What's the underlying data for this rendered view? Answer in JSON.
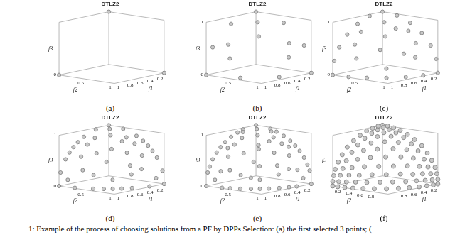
{
  "caption": "1: Example of the process of choosing solutions from a PF by DPPs Selection: (a) the first selected 3 points; (",
  "chart_data": [
    {
      "type": "scatter3d",
      "title": "DTLZ2",
      "panel_label": "(a)",
      "x_label": "f1",
      "y_label": "f2",
      "z_label": "f3",
      "xlim": [
        0,
        1
      ],
      "ylim": [
        0,
        1
      ],
      "zlim": [
        0,
        1
      ],
      "xticks": [
        0.2,
        0.4,
        0.6,
        0.8,
        1
      ],
      "yticks": [
        0.5,
        1
      ],
      "zticks": [
        0,
        1
      ],
      "color": "#c8c8c8",
      "marker": "circle",
      "points": [
        [
          1,
          0,
          0
        ],
        [
          0,
          1,
          0
        ],
        [
          0,
          0,
          1
        ]
      ]
    },
    {
      "type": "scatter3d",
      "title": "DTLZ2",
      "panel_label": "(b)",
      "x_label": "f1",
      "y_label": "f2",
      "z_label": "f3",
      "xlim": [
        0,
        1
      ],
      "ylim": [
        0,
        1
      ],
      "zlim": [
        0,
        1
      ],
      "xticks": [
        0.2,
        0.4,
        0.6,
        0.8,
        1
      ],
      "yticks": [
        0.5,
        1
      ],
      "zticks": [
        0,
        1
      ],
      "color": "#c8c8c8",
      "marker": "circle",
      "points": [
        [
          1,
          0,
          0
        ],
        [
          0,
          1,
          0
        ],
        [
          0,
          0,
          1
        ],
        [
          0.87,
          0.5,
          0
        ],
        [
          0.5,
          0.87,
          0
        ],
        [
          0.5,
          0,
          0.87
        ],
        [
          0.87,
          0,
          0.5
        ],
        [
          0,
          0.5,
          0.87
        ],
        [
          0,
          0.87,
          0.5
        ],
        [
          0.5,
          0.5,
          0.71
        ],
        [
          0.88,
          0.32,
          0.34
        ],
        [
          0.32,
          0.88,
          0.34
        ],
        [
          0.79,
          0.21,
          0.57
        ],
        [
          0.21,
          0.79,
          0.57
        ],
        [
          0.3,
          0.3,
          0.91
        ]
      ]
    },
    {
      "type": "scatter3d",
      "title": "DTLZ2",
      "panel_label": "(c)",
      "x_label": "f1",
      "y_label": "f2",
      "z_label": "f3",
      "xlim": [
        0,
        1
      ],
      "ylim": [
        0,
        1
      ],
      "zlim": [
        0,
        1
      ],
      "xticks": [
        0.2,
        0.4,
        0.6,
        0.8,
        1
      ],
      "yticks": [
        0.5,
        1
      ],
      "zticks": [
        0,
        1
      ],
      "color": "#c8c8c8",
      "marker": "circle",
      "points": [
        [
          1,
          0,
          0
        ],
        [
          0,
          1,
          0
        ],
        [
          0,
          0,
          1
        ],
        [
          0.87,
          0.5,
          0
        ],
        [
          0.5,
          0.87,
          0
        ],
        [
          0.5,
          0,
          0.87
        ],
        [
          0.87,
          0,
          0.5
        ],
        [
          0,
          0.5,
          0.87
        ],
        [
          0,
          0.87,
          0.5
        ],
        [
          0.5,
          0.5,
          0.71
        ],
        [
          0.88,
          0.32,
          0.34
        ],
        [
          0.32,
          0.88,
          0.34
        ],
        [
          0.79,
          0.21,
          0.57
        ],
        [
          0.21,
          0.79,
          0.57
        ],
        [
          0.3,
          0.3,
          0.91
        ],
        [
          0.97,
          0.26,
          0
        ],
        [
          0.71,
          0.71,
          0
        ],
        [
          0.26,
          0.97,
          0
        ],
        [
          0.26,
          0,
          0.97
        ],
        [
          0.71,
          0,
          0.71
        ],
        [
          0.97,
          0,
          0.26
        ],
        [
          0,
          0.26,
          0.97
        ],
        [
          0,
          0.71,
          0.71
        ],
        [
          0,
          0.97,
          0.26
        ],
        [
          0.69,
          0.69,
          0.17
        ],
        [
          0.67,
          0.56,
          0.5
        ],
        [
          0.62,
          0.17,
          0.77
        ],
        [
          0.17,
          0.62,
          0.77
        ],
        [
          0.45,
          0.79,
          0.42
        ],
        [
          0.29,
          0.5,
          0.82
        ]
      ]
    },
    {
      "type": "scatter3d",
      "title": "DTLZ2",
      "panel_label": "(d)",
      "x_label": "f1",
      "y_label": "f2",
      "z_label": "f3",
      "xlim": [
        0,
        1
      ],
      "ylim": [
        0,
        1
      ],
      "zlim": [
        0,
        1
      ],
      "xticks": [
        0.2,
        0.4,
        0.6,
        0.8,
        1
      ],
      "yticks": [
        0.5,
        1
      ],
      "zticks": [
        0,
        1
      ],
      "color": "#c8c8c8",
      "marker": "circle",
      "points": [
        [
          1,
          0,
          0
        ],
        [
          0,
          1,
          0
        ],
        [
          0,
          0,
          1
        ],
        [
          0.87,
          0.5,
          0
        ],
        [
          0.5,
          0.87,
          0
        ],
        [
          0.5,
          0,
          0.87
        ],
        [
          0.87,
          0,
          0.5
        ],
        [
          0,
          0.5,
          0.87
        ],
        [
          0,
          0.87,
          0.5
        ],
        [
          0.5,
          0.5,
          0.71
        ],
        [
          0.88,
          0.32,
          0.34
        ],
        [
          0.32,
          0.88,
          0.34
        ],
        [
          0.79,
          0.21,
          0.57
        ],
        [
          0.21,
          0.79,
          0.57
        ],
        [
          0.3,
          0.3,
          0.91
        ],
        [
          0.97,
          0.26,
          0
        ],
        [
          0.71,
          0.71,
          0
        ],
        [
          0.26,
          0.97,
          0
        ],
        [
          0.26,
          0,
          0.97
        ],
        [
          0.71,
          0,
          0.71
        ],
        [
          0.97,
          0,
          0.26
        ],
        [
          0,
          0.26,
          0.97
        ],
        [
          0,
          0.71,
          0.71
        ],
        [
          0,
          0.97,
          0.26
        ],
        [
          0.69,
          0.69,
          0.17
        ],
        [
          0.67,
          0.56,
          0.5
        ],
        [
          0.62,
          0.17,
          0.77
        ],
        [
          0.17,
          0.62,
          0.77
        ],
        [
          0.45,
          0.79,
          0.42
        ],
        [
          0.29,
          0.5,
          0.82
        ],
        [
          0.79,
          0.62,
          0
        ],
        [
          0.62,
          0.79,
          0
        ],
        [
          0.62,
          0,
          0.79
        ],
        [
          0.79,
          0,
          0.62
        ],
        [
          0,
          0.62,
          0.79
        ],
        [
          0,
          0.79,
          0.62
        ],
        [
          0.84,
          0.48,
          0.26
        ],
        [
          0.48,
          0.84,
          0.26
        ],
        [
          0.67,
          0.38,
          0.64
        ],
        [
          0.38,
          0.67,
          0.64
        ],
        [
          0.47,
          0.17,
          0.87
        ],
        [
          0.17,
          0.47,
          0.87
        ],
        [
          0.98,
          0.14,
          0.14
        ],
        [
          0.14,
          0.98,
          0.14
        ],
        [
          0.15,
          0.15,
          0.98
        ]
      ]
    },
    {
      "type": "scatter3d",
      "title": "DTLZ2",
      "panel_label": "(e)",
      "x_label": "f1",
      "y_label": "f2",
      "z_label": "f3",
      "xlim": [
        0,
        1
      ],
      "ylim": [
        0,
        1
      ],
      "zlim": [
        0,
        1
      ],
      "xticks": [
        0.2,
        0.4,
        0.6,
        0.8,
        1
      ],
      "yticks": [
        0.5,
        1
      ],
      "zticks": [
        0,
        1
      ],
      "color": "#c8c8c8",
      "marker": "circle",
      "points": [
        [
          1,
          0,
          0
        ],
        [
          0,
          1,
          0
        ],
        [
          0,
          0,
          1
        ],
        [
          0.87,
          0.5,
          0
        ],
        [
          0.5,
          0.87,
          0
        ],
        [
          0.5,
          0,
          0.87
        ],
        [
          0.87,
          0,
          0.5
        ],
        [
          0,
          0.5,
          0.87
        ],
        [
          0,
          0.87,
          0.5
        ],
        [
          0.5,
          0.5,
          0.71
        ],
        [
          0.88,
          0.32,
          0.34
        ],
        [
          0.32,
          0.88,
          0.34
        ],
        [
          0.79,
          0.21,
          0.57
        ],
        [
          0.21,
          0.79,
          0.57
        ],
        [
          0.3,
          0.3,
          0.91
        ],
        [
          0.97,
          0.26,
          0
        ],
        [
          0.71,
          0.71,
          0
        ],
        [
          0.26,
          0.97,
          0
        ],
        [
          0.26,
          0,
          0.97
        ],
        [
          0.71,
          0,
          0.71
        ],
        [
          0.97,
          0,
          0.26
        ],
        [
          0,
          0.26,
          0.97
        ],
        [
          0,
          0.71,
          0.71
        ],
        [
          0,
          0.97,
          0.26
        ],
        [
          0.69,
          0.69,
          0.17
        ],
        [
          0.67,
          0.56,
          0.5
        ],
        [
          0.62,
          0.17,
          0.77
        ],
        [
          0.17,
          0.62,
          0.77
        ],
        [
          0.45,
          0.79,
          0.42
        ],
        [
          0.29,
          0.5,
          0.82
        ],
        [
          0.79,
          0.62,
          0
        ],
        [
          0.62,
          0.79,
          0
        ],
        [
          0.62,
          0,
          0.79
        ],
        [
          0.79,
          0,
          0.62
        ],
        [
          0,
          0.62,
          0.79
        ],
        [
          0,
          0.79,
          0.62
        ],
        [
          0.84,
          0.48,
          0.26
        ],
        [
          0.48,
          0.84,
          0.26
        ],
        [
          0.67,
          0.38,
          0.64
        ],
        [
          0.38,
          0.67,
          0.64
        ],
        [
          0.47,
          0.17,
          0.87
        ],
        [
          0.17,
          0.47,
          0.87
        ],
        [
          0.98,
          0.14,
          0.14
        ],
        [
          0.14,
          0.98,
          0.14
        ],
        [
          0.15,
          0.15,
          0.98
        ],
        [
          0.93,
          0.37,
          0
        ],
        [
          0.37,
          0.93,
          0
        ],
        [
          0.37,
          0,
          0.93
        ],
        [
          0.93,
          0,
          0.37
        ],
        [
          0,
          0.37,
          0.93
        ],
        [
          0,
          0.93,
          0.37
        ],
        [
          0.64,
          0.64,
          0.42
        ],
        [
          0.7,
          0.12,
          0.71
        ],
        [
          0.12,
          0.7,
          0.71
        ],
        [
          0.93,
          0.2,
          0.31
        ],
        [
          0.2,
          0.93,
          0.31
        ],
        [
          0.45,
          0.45,
          0.77
        ],
        [
          0.33,
          0.06,
          0.94
        ],
        [
          0.06,
          0.33,
          0.94
        ],
        [
          0.77,
          0.6,
          0.21
        ]
      ]
    },
    {
      "type": "scatter3d",
      "title": "DTLZ2",
      "panel_label": "(f)",
      "x_label": "f1",
      "y_label": "f2",
      "z_label": "f3",
      "xlim": [
        0,
        1
      ],
      "ylim": [
        0,
        1
      ],
      "zlim": [
        0,
        1
      ],
      "xticks": [
        0.2,
        0.4,
        0.6,
        0.8
      ],
      "yticks": [
        0.2,
        0.4,
        0.6,
        0.8
      ],
      "zticks": [],
      "color": "#c8c8c8",
      "marker": "circle",
      "points": [
        [
          1,
          0,
          0
        ],
        [
          0,
          1,
          0
        ],
        [
          0,
          0,
          1
        ],
        [
          1,
          0.09,
          0
        ],
        [
          1,
          0,
          0.09
        ],
        [
          0.09,
          1,
          0
        ],
        [
          0.09,
          0,
          1
        ],
        [
          0,
          1,
          0.09
        ],
        [
          0,
          0.09,
          1
        ],
        [
          0.98,
          0.2,
          0
        ],
        [
          0.98,
          0,
          0.2
        ],
        [
          0.2,
          0.98,
          0
        ],
        [
          0.2,
          0,
          0.98
        ],
        [
          0,
          0.98,
          0.2
        ],
        [
          0,
          0.2,
          0.98
        ],
        [
          0.99,
          0.1,
          0.1
        ],
        [
          0.1,
          0.99,
          0.1
        ],
        [
          0.1,
          0.1,
          0.99
        ],
        [
          0.95,
          0.32,
          0
        ],
        [
          0.95,
          0,
          0.32
        ],
        [
          0.32,
          0.95,
          0
        ],
        [
          0.32,
          0,
          0.95
        ],
        [
          0,
          0.95,
          0.32
        ],
        [
          0,
          0.32,
          0.95
        ],
        [
          0.97,
          0.22,
          0.11
        ],
        [
          0.97,
          0.11,
          0.22
        ],
        [
          0.22,
          0.97,
          0.11
        ],
        [
          0.22,
          0.11,
          0.97
        ],
        [
          0.11,
          0.97,
          0.22
        ],
        [
          0.11,
          0.22,
          0.97
        ],
        [
          0.89,
          0.45,
          0
        ],
        [
          0.89,
          0,
          0.45
        ],
        [
          0.45,
          0.89,
          0
        ],
        [
          0.45,
          0,
          0.89
        ],
        [
          0,
          0.89,
          0.45
        ],
        [
          0,
          0.45,
          0.89
        ],
        [
          0.93,
          0.35,
          0.12
        ],
        [
          0.93,
          0.12,
          0.35
        ],
        [
          0.35,
          0.93,
          0.12
        ],
        [
          0.35,
          0.12,
          0.93
        ],
        [
          0.12,
          0.93,
          0.35
        ],
        [
          0.12,
          0.35,
          0.93
        ],
        [
          0.94,
          0.24,
          0.24
        ],
        [
          0.24,
          0.94,
          0.24
        ],
        [
          0.24,
          0.24,
          0.94
        ],
        [
          0.81,
          0.58,
          0
        ],
        [
          0.81,
          0,
          0.58
        ],
        [
          0.58,
          0.81,
          0
        ],
        [
          0.58,
          0,
          0.81
        ],
        [
          0,
          0.81,
          0.58
        ],
        [
          0,
          0.58,
          0.81
        ],
        [
          0.86,
          0.49,
          0.12
        ],
        [
          0.86,
          0.12,
          0.49
        ],
        [
          0.49,
          0.86,
          0.12
        ],
        [
          0.49,
          0.12,
          0.86
        ],
        [
          0.12,
          0.86,
          0.49
        ],
        [
          0.12,
          0.49,
          0.86
        ],
        [
          0.89,
          0.38,
          0.25
        ],
        [
          0.89,
          0.25,
          0.38
        ],
        [
          0.38,
          0.89,
          0.25
        ],
        [
          0.38,
          0.25,
          0.89
        ],
        [
          0.25,
          0.89,
          0.38
        ],
        [
          0.25,
          0.38,
          0.89
        ],
        [
          0.71,
          0.71,
          0
        ],
        [
          0.71,
          0,
          0.71
        ],
        [
          0,
          0.71,
          0.71
        ],
        [
          0.76,
          0.64,
          0.13
        ],
        [
          0.76,
          0.13,
          0.64
        ],
        [
          0.64,
          0.76,
          0.13
        ],
        [
          0.64,
          0.13,
          0.76
        ],
        [
          0.13,
          0.76,
          0.64
        ],
        [
          0.13,
          0.64,
          0.76
        ],
        [
          0.8,
          0.53,
          0.27
        ],
        [
          0.8,
          0.27,
          0.53
        ],
        [
          0.53,
          0.8,
          0.27
        ],
        [
          0.53,
          0.27,
          0.8
        ],
        [
          0.27,
          0.8,
          0.53
        ],
        [
          0.27,
          0.53,
          0.8
        ],
        [
          0.82,
          0.41,
          0.41
        ],
        [
          0.41,
          0.82,
          0.41
        ],
        [
          0.41,
          0.41,
          0.82
        ],
        [
          0.68,
          0.68,
          0.27
        ],
        [
          0.68,
          0.27,
          0.68
        ],
        [
          0.27,
          0.68,
          0.68
        ],
        [
          0.71,
          0.57,
          0.42
        ],
        [
          0.71,
          0.42,
          0.57
        ],
        [
          0.57,
          0.71,
          0.42
        ],
        [
          0.57,
          0.42,
          0.71
        ],
        [
          0.42,
          0.71,
          0.57
        ],
        [
          0.42,
          0.57,
          0.71
        ],
        [
          0.58,
          0.58,
          0.58
        ]
      ]
    }
  ]
}
